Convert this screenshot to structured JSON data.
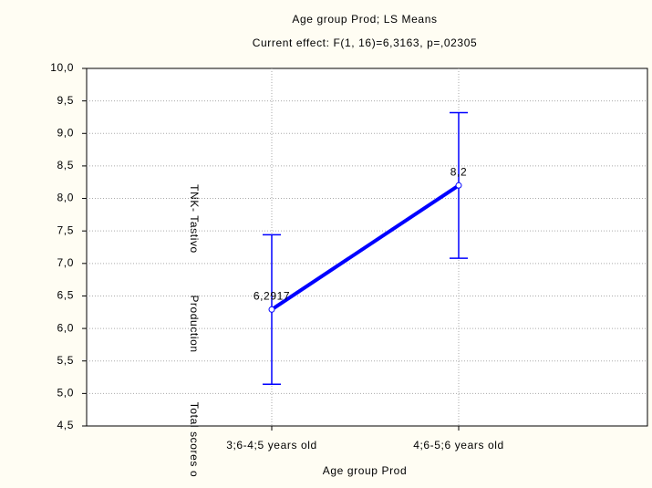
{
  "chart_data": {
    "type": "line",
    "title": "Age group Prod; LS Means",
    "subtitle": "Current effect: F(1, 16)=6,3163, p=,02305",
    "x_label": "Age group Prod",
    "y_label_parts": [
      "TNK- Tastivo",
      "Production",
      "Total scores o"
    ],
    "categories": [
      "3;6-4;5 years old",
      "4;6-5;6 years old"
    ],
    "series": [
      {
        "name": "LS Means",
        "color": "#0000ff",
        "values": [
          6.2917,
          8.2
        ],
        "value_labels": [
          "6,2917",
          "8,2"
        ],
        "errors": [
          1.15,
          1.12
        ]
      }
    ],
    "ylim": [
      4.5,
      10.0
    ],
    "yticks": [
      {
        "value": 4.5,
        "label": "4,5"
      },
      {
        "value": 5.0,
        "label": "5,0"
      },
      {
        "value": 5.5,
        "label": "5,5"
      },
      {
        "value": 6.0,
        "label": "6,0"
      },
      {
        "value": 6.5,
        "label": "6,5"
      },
      {
        "value": 7.0,
        "label": "7,0"
      },
      {
        "value": 7.5,
        "label": "7,5"
      },
      {
        "value": 8.0,
        "label": "8,0"
      },
      {
        "value": 8.5,
        "label": "8,5"
      },
      {
        "value": 9.0,
        "label": "9,0"
      },
      {
        "value": 9.5,
        "label": "9,5"
      },
      {
        "value": 10.0,
        "label": "10,0"
      }
    ],
    "grid": true
  }
}
